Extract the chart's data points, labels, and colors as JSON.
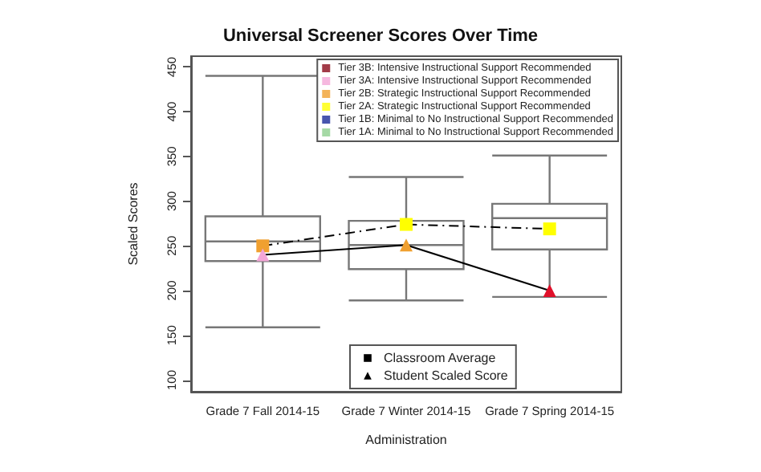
{
  "chart_data": {
    "type": "box",
    "title": "Universal Screener Scores Over Time",
    "xlabel": "Administration",
    "ylabel": "Scaled Scores",
    "categories": [
      "Grade 7 Fall 2014-15",
      "Grade 7 Winter 2014-15",
      "Grade 7 Spring 2014-15"
    ],
    "boxes": [
      {
        "low": 159,
        "q1": 233,
        "median": 255,
        "q3": 283,
        "high": 440
      },
      {
        "low": 189,
        "q1": 224,
        "median": 251,
        "q3": 278,
        "high": 327
      },
      {
        "low": 193,
        "q1": 246,
        "median": 281,
        "q3": 297,
        "high": 351
      }
    ],
    "ylim": [
      87,
      462
    ],
    "yticks": [
      100,
      150,
      200,
      250,
      300,
      350,
      400,
      450
    ],
    "grid": false,
    "legend": "top right",
    "series": [
      {
        "name": "Classroom Average",
        "type": "line",
        "marker": "square",
        "line_style": "dashed",
        "color": "#000000",
        "colors": [
          "#f0a030",
          "#ffff00",
          "#ffff00"
        ],
        "values": [
          250,
          274,
          269
        ]
      },
      {
        "name": "Student Scaled Score",
        "type": "line",
        "marker": "triangle",
        "line_style": "solid",
        "color": "#000000",
        "colors": [
          "#f4a6d7",
          "#f0a030",
          "#e0102a"
        ],
        "values": [
          240,
          251,
          200
        ]
      },
      {
        "name": "Tier 3B: Intensive Instructional Support Recommended",
        "type": "scatter",
        "marker": "square",
        "color": "#8b0a1a",
        "values": [
          null,
          null,
          null
        ]
      },
      {
        "name": "Tier 3A: Intensive Instructional Support Recommended",
        "type": "scatter",
        "marker": "square",
        "color": "#f4a6d7",
        "values": [
          null,
          null,
          null
        ]
      },
      {
        "name": "Tier 2B: Strategic Instructional Support Recommended",
        "type": "scatter",
        "marker": "square",
        "color": "#f0a030",
        "values": [
          null,
          null,
          null
        ]
      },
      {
        "name": "Tier 2A: Strategic Instructional Support Recommended",
        "type": "scatter",
        "marker": "square",
        "color": "#ffff00",
        "values": [
          null,
          null,
          null
        ]
      },
      {
        "name": "Tier 1B: Minimal to No Instructional Support Recommended",
        "type": "scatter",
        "marker": "square",
        "color": "#1a2a9a",
        "values": [
          null,
          null,
          null
        ]
      },
      {
        "name": "Tier 1A: Minimal to No Instructional Support Recommended",
        "type": "scatter",
        "marker": "square",
        "color": "#8fd08f",
        "values": [
          null,
          null,
          null
        ]
      }
    ]
  }
}
